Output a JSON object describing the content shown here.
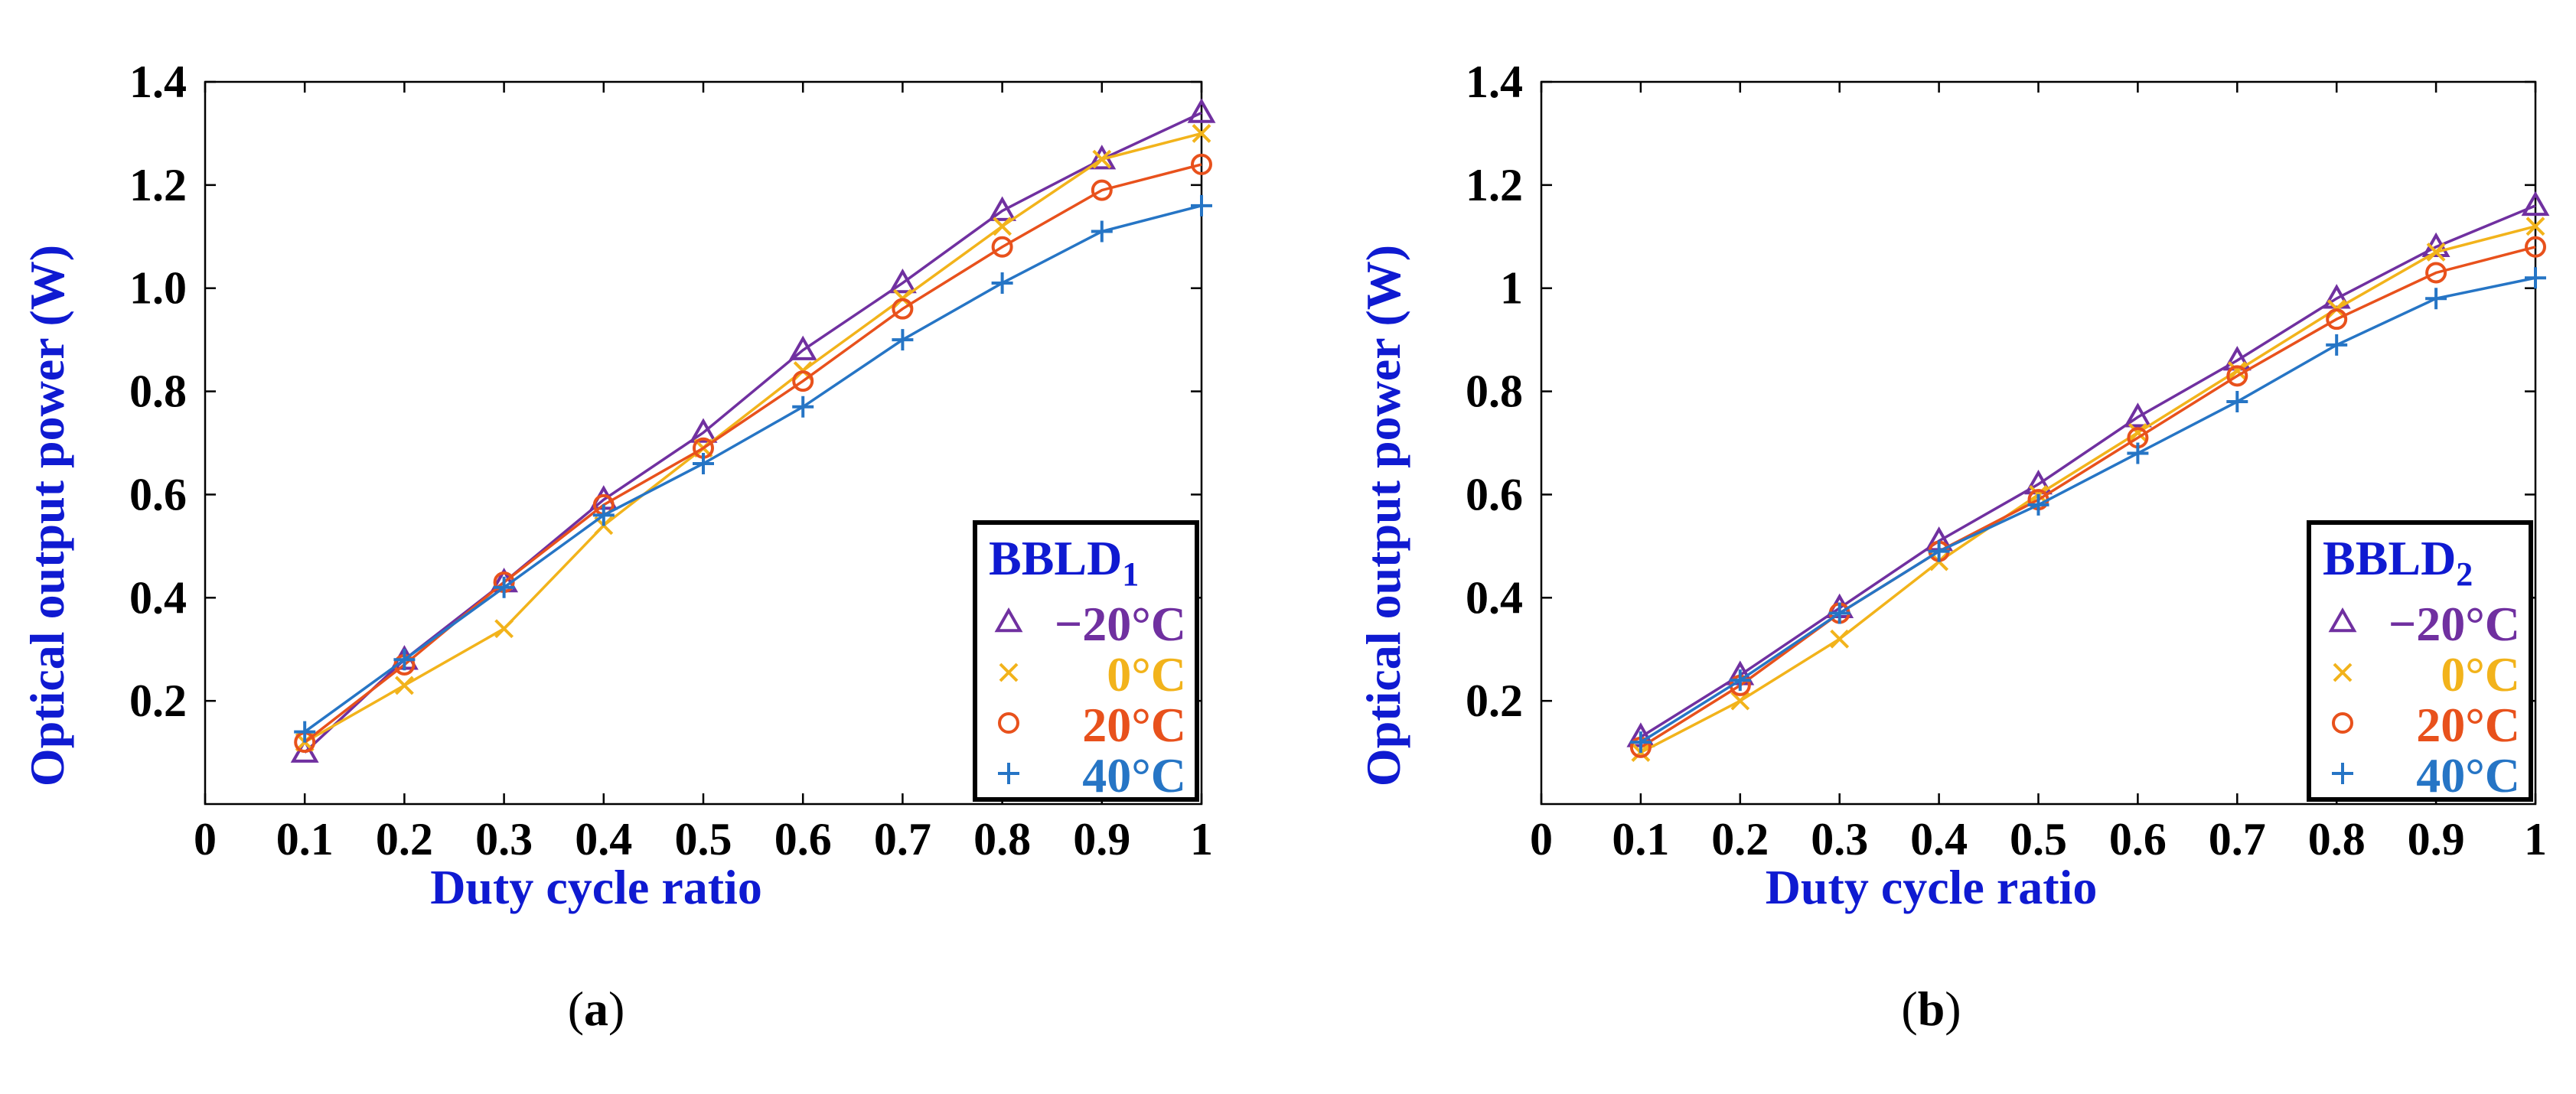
{
  "chart_data": [
    {
      "type": "line",
      "panel_label": "(a)",
      "xlabel": "Duty cycle ratio",
      "ylabel": "Optical output power (W)",
      "xlim": [
        0,
        1
      ],
      "ylim": [
        0,
        1.4
      ],
      "xticks": [
        "0",
        "0.1",
        "0.2",
        "0.3",
        "0.4",
        "0.5",
        "0.6",
        "0.7",
        "0.8",
        "0.9",
        "1"
      ],
      "yticks": [
        "0.2",
        "0.4",
        "0.6",
        "0.8",
        "1.0",
        "1.2",
        "1.4"
      ],
      "legend": {
        "title_main": "BBLD",
        "title_sub": "1",
        "position": "bottom-right"
      },
      "x": [
        0.1,
        0.2,
        0.3,
        0.4,
        0.5,
        0.6,
        0.7,
        0.8,
        0.9,
        1.0
      ],
      "series": [
        {
          "name": "−20°C",
          "marker": "triangle",
          "color": "#7030a0",
          "values": [
            0.1,
            0.28,
            0.43,
            0.59,
            0.72,
            0.88,
            1.01,
            1.15,
            1.25,
            1.34
          ]
        },
        {
          "name": "0°C",
          "marker": "x",
          "color": "#f2b31b",
          "values": [
            0.12,
            0.23,
            0.34,
            0.54,
            0.69,
            0.84,
            0.98,
            1.12,
            1.25,
            1.3
          ]
        },
        {
          "name": "20°C",
          "marker": "circle",
          "color": "#e8511c",
          "values": [
            0.12,
            0.27,
            0.43,
            0.58,
            0.69,
            0.82,
            0.96,
            1.08,
            1.19,
            1.24
          ]
        },
        {
          "name": "40°C",
          "marker": "plus",
          "color": "#2675c5",
          "values": [
            0.14,
            0.28,
            0.42,
            0.56,
            0.66,
            0.77,
            0.9,
            1.01,
            1.11,
            1.16
          ]
        }
      ]
    },
    {
      "type": "line",
      "panel_label": "(b)",
      "xlabel": "Duty cycle ratio",
      "ylabel": "Optical output power (W)",
      "xlim": [
        0,
        1
      ],
      "ylim": [
        0,
        1.4
      ],
      "xticks": [
        "0",
        "0.1",
        "0.2",
        "0.3",
        "0.4",
        "0.5",
        "0.6",
        "0.7",
        "0.8",
        "0.9",
        "1"
      ],
      "yticks": [
        "0.2",
        "0.4",
        "0.6",
        "0.8",
        "1",
        "1.2",
        "1.4"
      ],
      "legend": {
        "title_main": "BBLD",
        "title_sub": "2",
        "position": "bottom-right"
      },
      "x": [
        0.1,
        0.2,
        0.3,
        0.4,
        0.5,
        0.6,
        0.7,
        0.8,
        0.9,
        1.0
      ],
      "series": [
        {
          "name": "−20°C",
          "marker": "triangle",
          "color": "#7030a0",
          "values": [
            0.13,
            0.25,
            0.38,
            0.51,
            0.62,
            0.75,
            0.86,
            0.98,
            1.08,
            1.16
          ]
        },
        {
          "name": "0°C",
          "marker": "x",
          "color": "#f2b31b",
          "values": [
            0.1,
            0.2,
            0.32,
            0.47,
            0.6,
            0.72,
            0.84,
            0.96,
            1.07,
            1.12
          ]
        },
        {
          "name": "20°C",
          "marker": "circle",
          "color": "#e8511c",
          "values": [
            0.11,
            0.23,
            0.37,
            0.49,
            0.59,
            0.71,
            0.83,
            0.94,
            1.03,
            1.08
          ]
        },
        {
          "name": "40°C",
          "marker": "plus",
          "color": "#2675c5",
          "values": [
            0.12,
            0.24,
            0.37,
            0.49,
            0.58,
            0.68,
            0.78,
            0.89,
            0.98,
            1.02
          ]
        }
      ]
    }
  ]
}
